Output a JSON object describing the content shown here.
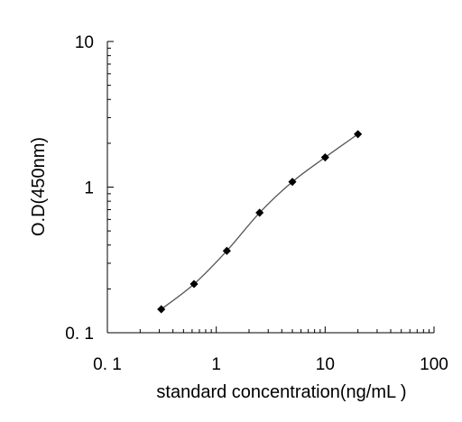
{
  "chart_data": {
    "type": "line",
    "xlabel": "standard concentration(ng/mL )",
    "ylabel": "O.D(450nm)",
    "x_scale": "log",
    "y_scale": "log",
    "xlim": [
      0.1,
      100
    ],
    "ylim": [
      0.1,
      10
    ],
    "x_ticks": [
      {
        "value": 0.1,
        "label": "0. 1"
      },
      {
        "value": 1,
        "label": "1"
      },
      {
        "value": 10,
        "label": "10"
      },
      {
        "value": 100,
        "label": "100"
      }
    ],
    "y_ticks": [
      {
        "value": 0.1,
        "label": "0. 1"
      },
      {
        "value": 1,
        "label": "1"
      },
      {
        "value": 10,
        "label": "10"
      }
    ],
    "grid": false,
    "legend": "none",
    "series": [
      {
        "x": [
          0.3125,
          0.625,
          1.25,
          2.5,
          5,
          10,
          20
        ],
        "y": [
          0.145,
          0.216,
          0.365,
          0.667,
          1.087,
          1.6,
          2.31
        ],
        "color": "#000000",
        "line_color": "#555555"
      }
    ]
  }
}
